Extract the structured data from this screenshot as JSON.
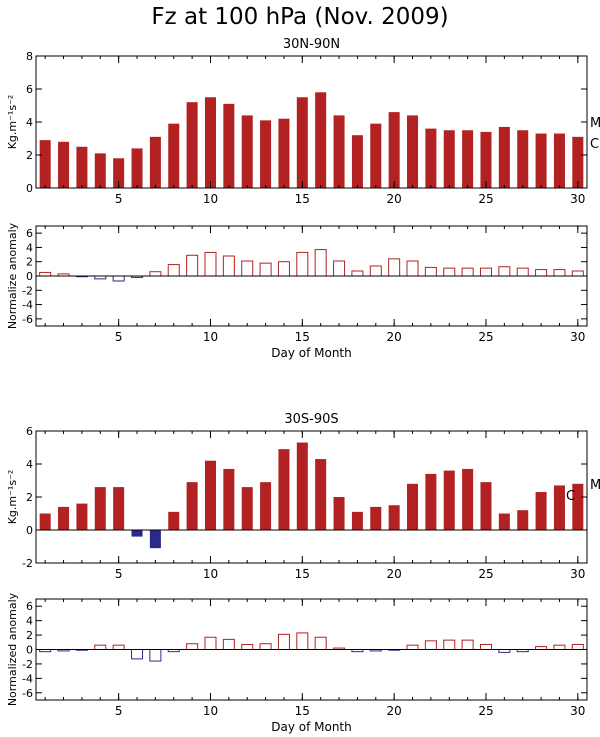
{
  "title": "Fz at 100 hPa (Nov. 2009)",
  "x_axis_label": "Day of Month",
  "colors": {
    "positive": "#b22222",
    "negative": "#2a2a8a",
    "axis": "#000000"
  },
  "chart_data": [
    {
      "id": "nh-fz",
      "type": "bar",
      "style": "filled",
      "title": "30N-90N",
      "ylabel": "Kg.m⁻¹s⁻²",
      "side_labels": [
        "M",
        "C"
      ],
      "xlabel": "",
      "xlim": [
        0.5,
        30.5
      ],
      "ylim": [
        0,
        8
      ],
      "yticks": [
        0,
        2,
        4,
        6,
        8
      ],
      "xticks": [
        5,
        10,
        15,
        20,
        25,
        30
      ],
      "x": [
        1,
        2,
        3,
        4,
        5,
        6,
        7,
        8,
        9,
        10,
        11,
        12,
        13,
        14,
        15,
        16,
        17,
        18,
        19,
        20,
        21,
        22,
        23,
        24,
        25,
        26,
        27,
        28,
        29,
        30
      ],
      "values": [
        2.9,
        2.8,
        2.5,
        2.1,
        1.8,
        2.4,
        3.1,
        3.9,
        5.2,
        5.5,
        5.1,
        4.4,
        4.1,
        4.2,
        5.5,
        5.8,
        4.4,
        3.2,
        3.9,
        4.6,
        4.4,
        3.6,
        3.5,
        3.5,
        3.4,
        3.7,
        3.5,
        3.3,
        3.3,
        3.1
      ]
    },
    {
      "id": "nh-anom",
      "type": "bar",
      "style": "hollow",
      "title": "",
      "ylabel": "Normalize anomaly",
      "xlabel": "Day of Month",
      "xlim": [
        0.5,
        30.5
      ],
      "ylim": [
        -7,
        7
      ],
      "yticks": [
        -6,
        -4,
        -2,
        0,
        2,
        4,
        6
      ],
      "xticks": [
        5,
        10,
        15,
        20,
        25,
        30
      ],
      "x": [
        1,
        2,
        3,
        4,
        5,
        6,
        7,
        8,
        9,
        10,
        11,
        12,
        13,
        14,
        15,
        16,
        17,
        18,
        19,
        20,
        21,
        22,
        23,
        24,
        25,
        26,
        27,
        28,
        29,
        30
      ],
      "values": [
        0.5,
        0.3,
        -0.1,
        -0.4,
        -0.7,
        -0.2,
        0.6,
        1.6,
        2.9,
        3.3,
        2.8,
        2.1,
        1.8,
        2.0,
        3.3,
        3.7,
        2.1,
        0.7,
        1.4,
        2.4,
        2.1,
        1.2,
        1.1,
        1.1,
        1.1,
        1.3,
        1.1,
        0.9,
        0.9,
        0.7
      ]
    },
    {
      "id": "sh-fz",
      "type": "bar",
      "style": "filled",
      "title": "30S-90S",
      "ylabel": "Kg.m⁻¹s⁻²",
      "side_labels": [
        "M",
        "C"
      ],
      "xlabel": "",
      "xlim": [
        0.5,
        30.5
      ],
      "ylim": [
        -2,
        6
      ],
      "yticks": [
        -2,
        0,
        2,
        4,
        6
      ],
      "xticks": [
        5,
        10,
        15,
        20,
        25,
        30
      ],
      "x": [
        1,
        2,
        3,
        4,
        5,
        6,
        7,
        8,
        9,
        10,
        11,
        12,
        13,
        14,
        15,
        16,
        17,
        18,
        19,
        20,
        21,
        22,
        23,
        24,
        25,
        26,
        27,
        28,
        29,
        30
      ],
      "values": [
        1.0,
        1.4,
        1.6,
        2.6,
        2.6,
        -0.4,
        -1.1,
        1.1,
        2.9,
        4.2,
        3.7,
        2.6,
        2.9,
        4.9,
        5.3,
        4.3,
        2.0,
        1.1,
        1.4,
        1.5,
        2.8,
        3.4,
        3.6,
        3.7,
        2.9,
        1.0,
        1.2,
        2.3,
        2.7,
        2.8
      ]
    },
    {
      "id": "sh-anom",
      "type": "bar",
      "style": "hollow",
      "title": "",
      "ylabel": "Normalized anomaly",
      "xlabel": "Day of Month",
      "xlim": [
        0.5,
        30.5
      ],
      "ylim": [
        -7,
        7
      ],
      "yticks": [
        -6,
        -4,
        -2,
        0,
        2,
        4,
        6
      ],
      "xticks": [
        5,
        10,
        15,
        20,
        25,
        30
      ],
      "x": [
        1,
        2,
        3,
        4,
        5,
        6,
        7,
        8,
        9,
        10,
        11,
        12,
        13,
        14,
        15,
        16,
        17,
        18,
        19,
        20,
        21,
        22,
        23,
        24,
        25,
        26,
        27,
        28,
        29,
        30
      ],
      "values": [
        -0.3,
        -0.2,
        -0.1,
        0.6,
        0.6,
        -1.3,
        -1.6,
        -0.3,
        0.8,
        1.7,
        1.4,
        0.7,
        0.8,
        2.1,
        2.3,
        1.7,
        0.2,
        -0.3,
        -0.2,
        -0.1,
        0.6,
        1.2,
        1.3,
        1.3,
        0.7,
        -0.4,
        -0.3,
        0.4,
        0.6,
        0.7
      ]
    }
  ]
}
